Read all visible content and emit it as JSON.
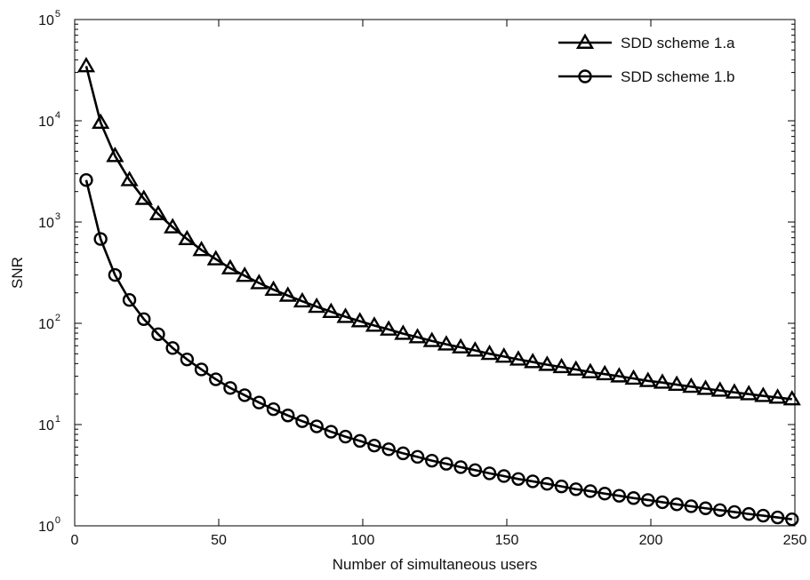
{
  "chart_data": {
    "type": "line",
    "xlabel": "Number of simultaneous users",
    "ylabel": "SNR",
    "xlim": [
      0,
      250
    ],
    "ylim": [
      1,
      100000
    ],
    "yscale": "log",
    "grid": false,
    "legend_position": "top-right",
    "x_ticks": [
      0,
      50,
      100,
      150,
      200,
      250
    ],
    "y_ticks": [
      {
        "base": "10",
        "exp": "0",
        "value": 1
      },
      {
        "base": "10",
        "exp": "1",
        "value": 10
      },
      {
        "base": "10",
        "exp": "2",
        "value": 100
      },
      {
        "base": "10",
        "exp": "3",
        "value": 1000
      },
      {
        "base": "10",
        "exp": "4",
        "value": 10000
      },
      {
        "base": "10",
        "exp": "5",
        "value": 100000
      }
    ],
    "x": [
      4,
      9,
      14,
      19,
      24,
      29,
      34,
      39,
      44,
      49,
      54,
      59,
      64,
      69,
      74,
      79,
      84,
      89,
      94,
      99,
      104,
      109,
      114,
      119,
      124,
      129,
      134,
      139,
      144,
      149,
      154,
      159,
      164,
      169,
      174,
      179,
      184,
      189,
      194,
      199,
      204,
      209,
      214,
      219,
      224,
      229,
      234,
      239,
      244,
      249
    ],
    "series": [
      {
        "name": "SDD scheme 1.a",
        "marker": "triangle",
        "color": "#000000",
        "values": [
          34700,
          9600,
          4500,
          2600,
          1700,
          1200,
          890,
          680,
          530,
          430,
          350,
          295,
          250,
          215,
          188,
          165,
          146,
          130,
          116,
          105,
          95,
          87,
          79,
          73,
          67,
          62,
          58,
          54,
          50,
          47,
          44,
          41.5,
          39,
          37,
          35,
          33,
          31.5,
          30,
          28.5,
          27,
          26,
          24.8,
          23.7,
          22.6,
          21.7,
          20.8,
          20,
          19.2,
          18.5,
          17.8
        ]
      },
      {
        "name": "SDD scheme 1.b",
        "marker": "circle",
        "color": "#000000",
        "values": [
          2600,
          680,
          300,
          170,
          110,
          78,
          57,
          44,
          35,
          28,
          23,
          19.5,
          16.5,
          14.2,
          12.3,
          10.8,
          9.6,
          8.5,
          7.6,
          6.9,
          6.2,
          5.7,
          5.2,
          4.8,
          4.4,
          4.1,
          3.8,
          3.55,
          3.3,
          3.1,
          2.9,
          2.75,
          2.6,
          2.45,
          2.3,
          2.2,
          2.08,
          1.98,
          1.88,
          1.8,
          1.71,
          1.63,
          1.56,
          1.49,
          1.43,
          1.37,
          1.31,
          1.26,
          1.21,
          1.16
        ]
      }
    ]
  }
}
